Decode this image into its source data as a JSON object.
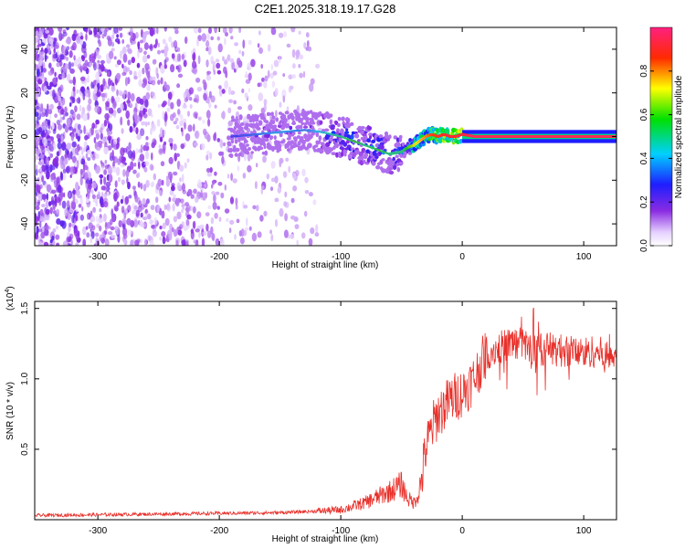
{
  "title": "C2E1.2025.318.19.17.G28",
  "colors": {
    "snr_line": "#e8302a",
    "spectral_core": "#1b3a8c",
    "background_scatter": "#7a2be0"
  },
  "chart_data": [
    {
      "type": "heatmap",
      "name": "spectrogram",
      "xlabel": "Height of straight line (km)",
      "ylabel": "Frequency (Hz)",
      "xlim": [
        -352,
        127
      ],
      "ylim": [
        -50,
        50
      ],
      "xticks": [
        -300,
        -200,
        -100,
        0,
        100
      ],
      "yticks": [
        -40,
        -20,
        0,
        20,
        40
      ],
      "grid": false,
      "colorbar": {
        "label": "Normalized spectral amplitude",
        "range": [
          0.0,
          1.0
        ],
        "ticks": [
          0.0,
          0.2,
          0.4,
          0.6,
          0.8
        ],
        "tick_labels": [
          "0.0",
          "0.2",
          "0.4",
          "0.6",
          "0.8"
        ],
        "colormap": "rainbow (white-purple-blue-cyan-green-yellow-red-magenta)"
      },
      "frequency_track": {
        "x": [
          -190,
          -170,
          -150,
          -130,
          -115,
          -100,
          -90,
          -80,
          -70,
          -60,
          -50,
          -45,
          -40,
          -35,
          -30,
          -25,
          -20,
          -15,
          -10,
          -5,
          0,
          10,
          30,
          60,
          90,
          127
        ],
        "y": [
          0,
          1,
          2,
          3,
          2,
          0,
          -2,
          -4,
          -6,
          -8,
          -7,
          -5,
          -4,
          -2,
          0,
          1,
          0,
          1,
          0,
          0,
          1,
          0,
          0,
          0,
          0,
          0
        ],
        "peak_amplitude": [
          0.3,
          0.35,
          0.4,
          0.35,
          0.45,
          0.5,
          0.55,
          0.5,
          0.55,
          0.5,
          0.5,
          0.6,
          0.7,
          0.75,
          0.8,
          0.85,
          0.85,
          0.9,
          0.9,
          0.9,
          0.9,
          0.95,
          0.95,
          0.95,
          0.95,
          0.95
        ]
      }
    },
    {
      "type": "line",
      "name": "snr",
      "xlabel": "Height of straight line (km)",
      "ylabel": "SNR (10 * v/v)",
      "yscale_label": "(x10",
      "yscale_exp": "4",
      "xlim": [
        -352,
        127
      ],
      "ylim": [
        0.0,
        1.55
      ],
      "xticks": [
        -300,
        -200,
        -100,
        0,
        100
      ],
      "yticks": [
        0.5,
        1.0,
        1.5
      ],
      "ytick_labels": [
        "0.5",
        "1.0",
        "1.5"
      ],
      "grid": false,
      "series": [
        {
          "name": "SNR",
          "x": [
            -352,
            -300,
            -250,
            -200,
            -150,
            -120,
            -100,
            -80,
            -60,
            -50,
            -45,
            -40,
            -35,
            -30,
            -25,
            -20,
            -15,
            -10,
            -5,
            0,
            5,
            10,
            15,
            20,
            30,
            40,
            50,
            60,
            70,
            80,
            90,
            100,
            110,
            120,
            127
          ],
          "y": [
            0.03,
            0.035,
            0.04,
            0.045,
            0.05,
            0.06,
            0.07,
            0.12,
            0.2,
            0.25,
            0.15,
            0.12,
            0.2,
            0.5,
            0.65,
            0.75,
            0.8,
            0.85,
            0.88,
            0.9,
            0.95,
            1.0,
            1.1,
            1.18,
            1.22,
            1.25,
            1.25,
            1.2,
            1.22,
            1.2,
            1.2,
            1.18,
            1.2,
            1.15,
            1.2
          ]
        }
      ]
    }
  ]
}
